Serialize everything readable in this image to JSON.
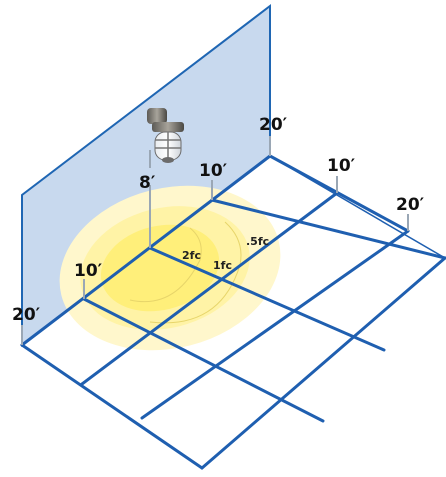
{
  "colors": {
    "wall_fill": "#c8d9ee",
    "wall_stroke": "#1f66b3",
    "grid_line": "#1f5fb0",
    "light_inner": "#fff27a",
    "light_mid": "#fff3a0",
    "light_outer": "#fff6c4",
    "tick": "#9aa7b5"
  },
  "labels": {
    "wall_height": "8′",
    "wall_top_right": "20′",
    "wall_mid_top": "10′",
    "floor_right_10": "10′",
    "floor_right_20": "20′",
    "floor_left_10": "10′",
    "floor_left_20": "20′"
  },
  "contours": {
    "fc_2": "2fc",
    "fc_1": "1fc",
    "fc_half": ".5fc"
  },
  "fixture": {
    "icon": "vapor-tight-wall-light-icon"
  }
}
